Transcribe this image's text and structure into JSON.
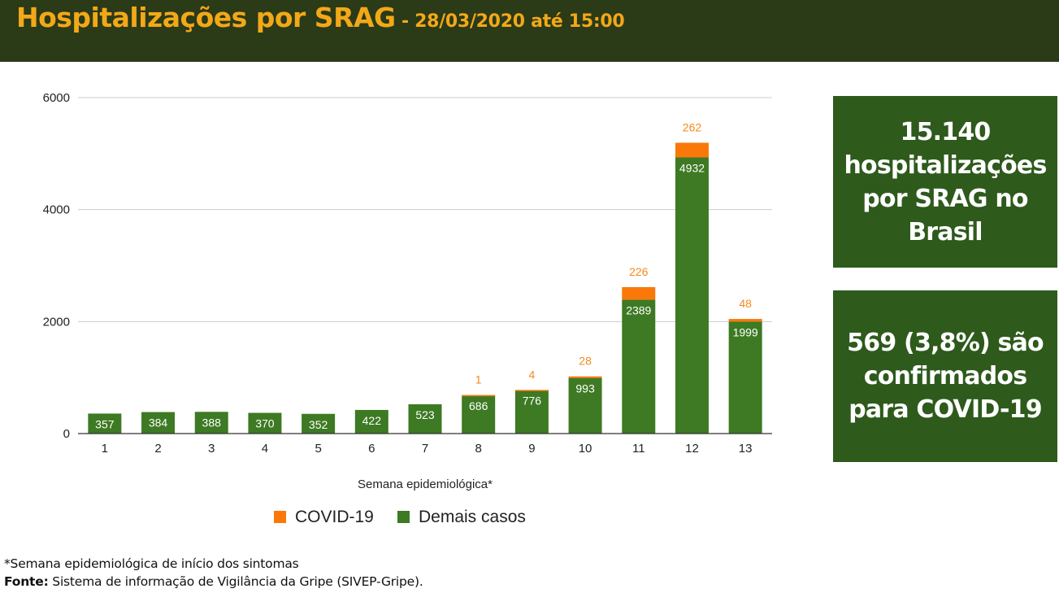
{
  "header": {
    "title": "Hospitalizações por SRAG",
    "subtitle": " - 28/03/2020 até 15:00"
  },
  "chart_data": {
    "type": "bar",
    "stacked": true,
    "categories": [
      "1",
      "2",
      "3",
      "4",
      "5",
      "6",
      "7",
      "8",
      "9",
      "10",
      "11",
      "12",
      "13"
    ],
    "series": [
      {
        "name": "Demais casos",
        "color": "#3d7a23",
        "values": [
          357,
          384,
          388,
          370,
          352,
          422,
          523,
          686,
          776,
          993,
          2389,
          4932,
          1999
        ]
      },
      {
        "name": "COVID-19",
        "color": "#f97809",
        "values": [
          0,
          0,
          0,
          0,
          0,
          0,
          0,
          1,
          4,
          28,
          226,
          262,
          48
        ]
      }
    ],
    "xlabel": "Semana epidemiológica*",
    "ylabel": "",
    "ylim": [
      0,
      6000
    ],
    "yticks": [
      0,
      2000,
      4000,
      6000
    ],
    "grid": true,
    "legend": "bottom"
  },
  "boxes": {
    "total_text": "15.140 hospitalizações por SRAG no Brasil",
    "confirmed_text": "569 (3,8%) são confirmados para COVID-19"
  },
  "footer": {
    "note": "*Semana epidemiológica de início dos sintomas",
    "source_label": "Fonte:",
    "source_text": " Sistema de informação de Vigilância da Gripe (SIVEP-Gripe)."
  }
}
